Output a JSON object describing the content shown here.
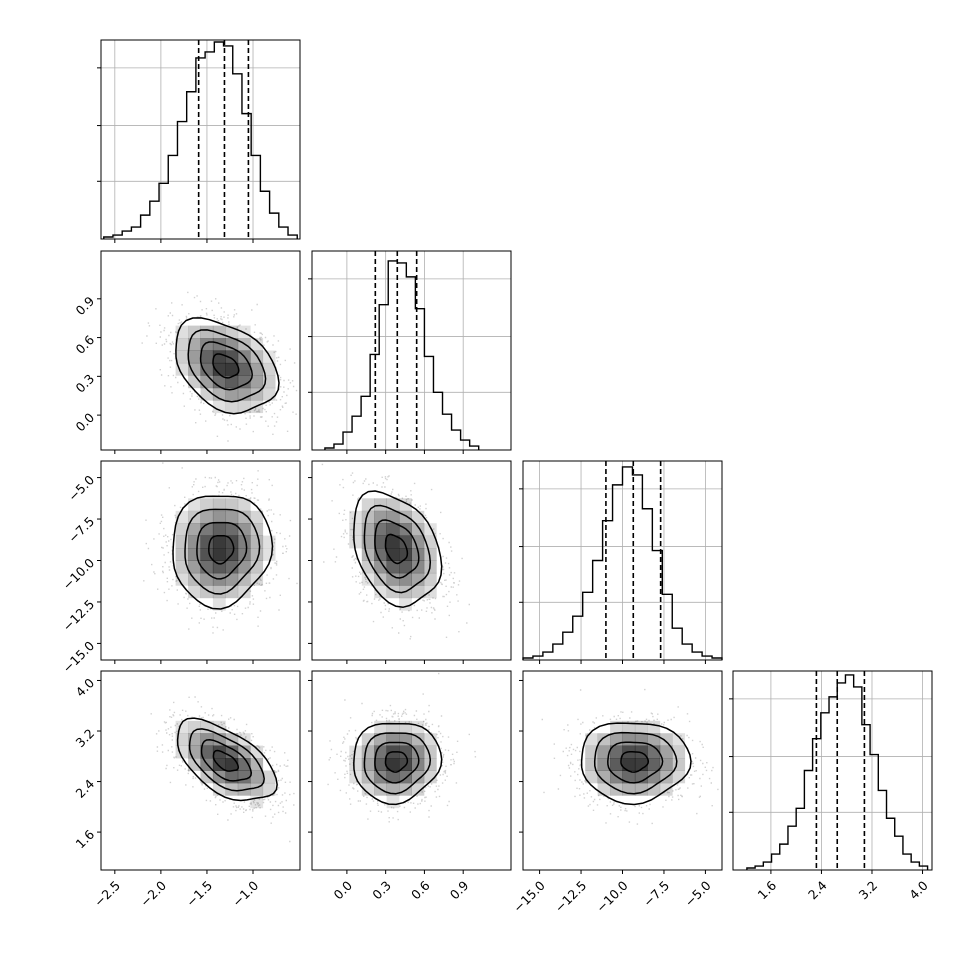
{
  "chart_data": {
    "type": "corner",
    "params": [
      {
        "lim": [
          -2.65,
          -0.49
        ],
        "ticks": [
          -2.5,
          -2.0,
          -1.5,
          -1.0
        ],
        "tick_labels": [
          "−2.5",
          "−2.0",
          "−1.5",
          "−1.0"
        ],
        "quantiles": [
          -1.59,
          -1.31,
          -1.05
        ],
        "hist": {
          "bin_edges": [
            -2.62,
            -2.52,
            -2.42,
            -2.32,
            -2.22,
            -2.12,
            -2.02,
            -1.92,
            -1.82,
            -1.72,
            -1.62,
            -1.52,
            -1.42,
            -1.32,
            -1.22,
            -1.12,
            -1.02,
            -0.92,
            -0.82,
            -0.72,
            -0.62,
            -0.52
          ],
          "heights": [
            0.01,
            0.02,
            0.04,
            0.06,
            0.12,
            0.19,
            0.28,
            0.42,
            0.59,
            0.74,
            0.91,
            0.94,
            0.99,
            0.97,
            0.83,
            0.63,
            0.42,
            0.24,
            0.13,
            0.06,
            0.02
          ]
        }
      },
      {
        "lim": [
          -0.27,
          1.27
        ],
        "ticks": [
          0.0,
          0.3,
          0.6,
          0.9
        ],
        "tick_labels": [
          "0.0",
          "0.3",
          "0.6",
          "0.9"
        ],
        "quantiles": [
          0.22,
          0.39,
          0.54
        ],
        "hist": {
          "bin_edges": [
            -0.17,
            -0.1,
            -0.03,
            0.04,
            0.11,
            0.18,
            0.25,
            0.32,
            0.39,
            0.46,
            0.53,
            0.6,
            0.67,
            0.74,
            0.81,
            0.88,
            0.95,
            1.02
          ],
          "heights": [
            0.01,
            0.03,
            0.09,
            0.17,
            0.27,
            0.48,
            0.73,
            0.95,
            0.94,
            0.87,
            0.71,
            0.47,
            0.29,
            0.18,
            0.1,
            0.05,
            0.02
          ]
        }
      },
      {
        "lim": [
          -16.0,
          -4.0
        ],
        "ticks": [
          -15.0,
          -12.5,
          -10.0,
          -7.5,
          -5.0
        ],
        "tick_labels": [
          "−15.0",
          "−12.5",
          "−10.0",
          "−7.5",
          "−5.0"
        ],
        "quantiles": [
          -11.0,
          -9.35,
          -7.7
        ],
        "hist": {
          "bin_edges": [
            -16.0,
            -15.4,
            -14.8,
            -14.2,
            -13.6,
            -13.0,
            -12.4,
            -11.8,
            -11.2,
            -10.6,
            -10.0,
            -9.4,
            -8.8,
            -8.2,
            -7.6,
            -7.0,
            -6.4,
            -5.8,
            -5.2,
            -4.6,
            -4.0
          ],
          "heights": [
            0.01,
            0.02,
            0.04,
            0.08,
            0.14,
            0.22,
            0.34,
            0.5,
            0.7,
            0.88,
            0.97,
            0.93,
            0.76,
            0.55,
            0.33,
            0.16,
            0.08,
            0.04,
            0.02,
            0.01
          ]
        }
      },
      {
        "lim": [
          1.0,
          4.15
        ],
        "ticks": [
          1.6,
          2.4,
          3.2,
          4.0
        ],
        "tick_labels": [
          "1.6",
          "2.4",
          "3.2",
          "4.0"
        ],
        "quantiles": [
          2.32,
          2.65,
          3.08
        ],
        "hist": {
          "bin_edges": [
            1.22,
            1.35,
            1.48,
            1.61,
            1.74,
            1.87,
            2.0,
            2.13,
            2.26,
            2.39,
            2.52,
            2.65,
            2.78,
            2.91,
            3.04,
            3.17,
            3.3,
            3.43,
            3.56,
            3.69,
            3.82,
            3.95,
            4.08
          ],
          "heights": [
            0.01,
            0.02,
            0.04,
            0.08,
            0.13,
            0.22,
            0.31,
            0.5,
            0.66,
            0.79,
            0.87,
            0.94,
            0.98,
            0.92,
            0.73,
            0.58,
            0.4,
            0.26,
            0.17,
            0.08,
            0.04,
            0.02
          ]
        }
      }
    ],
    "pairs": [
      {
        "row": 1,
        "col": 0,
        "mean": [
          -1.3,
          0.38
        ],
        "std": [
          0.28,
          0.18
        ],
        "rho": -0.35
      },
      {
        "row": 2,
        "col": 0,
        "mean": [
          -1.35,
          -9.3
        ],
        "std": [
          0.27,
          1.7
        ],
        "rho": 0.05
      },
      {
        "row": 2,
        "col": 1,
        "mean": [
          0.38,
          -9.3
        ],
        "std": [
          0.17,
          1.7
        ],
        "rho": -0.3
      },
      {
        "row": 3,
        "col": 0,
        "mean": [
          -1.3,
          2.72
        ],
        "std": [
          0.27,
          0.32
        ],
        "rho": -0.55
      },
      {
        "row": 3,
        "col": 1,
        "mean": [
          0.38,
          2.72
        ],
        "std": [
          0.17,
          0.32
        ],
        "rho": 0.05
      },
      {
        "row": 3,
        "col": 2,
        "mean": [
          -9.3,
          2.72
        ],
        "std": [
          1.65,
          0.32
        ],
        "rho": 0.0
      }
    ],
    "contour_levels_sigma": [
      0.5,
      1.0,
      1.5,
      2.0
    ],
    "grid": true,
    "colors": {
      "hist": "#000000",
      "points": "#9a9a9a",
      "grid": "#b0b0b0",
      "density": "#000000"
    }
  }
}
